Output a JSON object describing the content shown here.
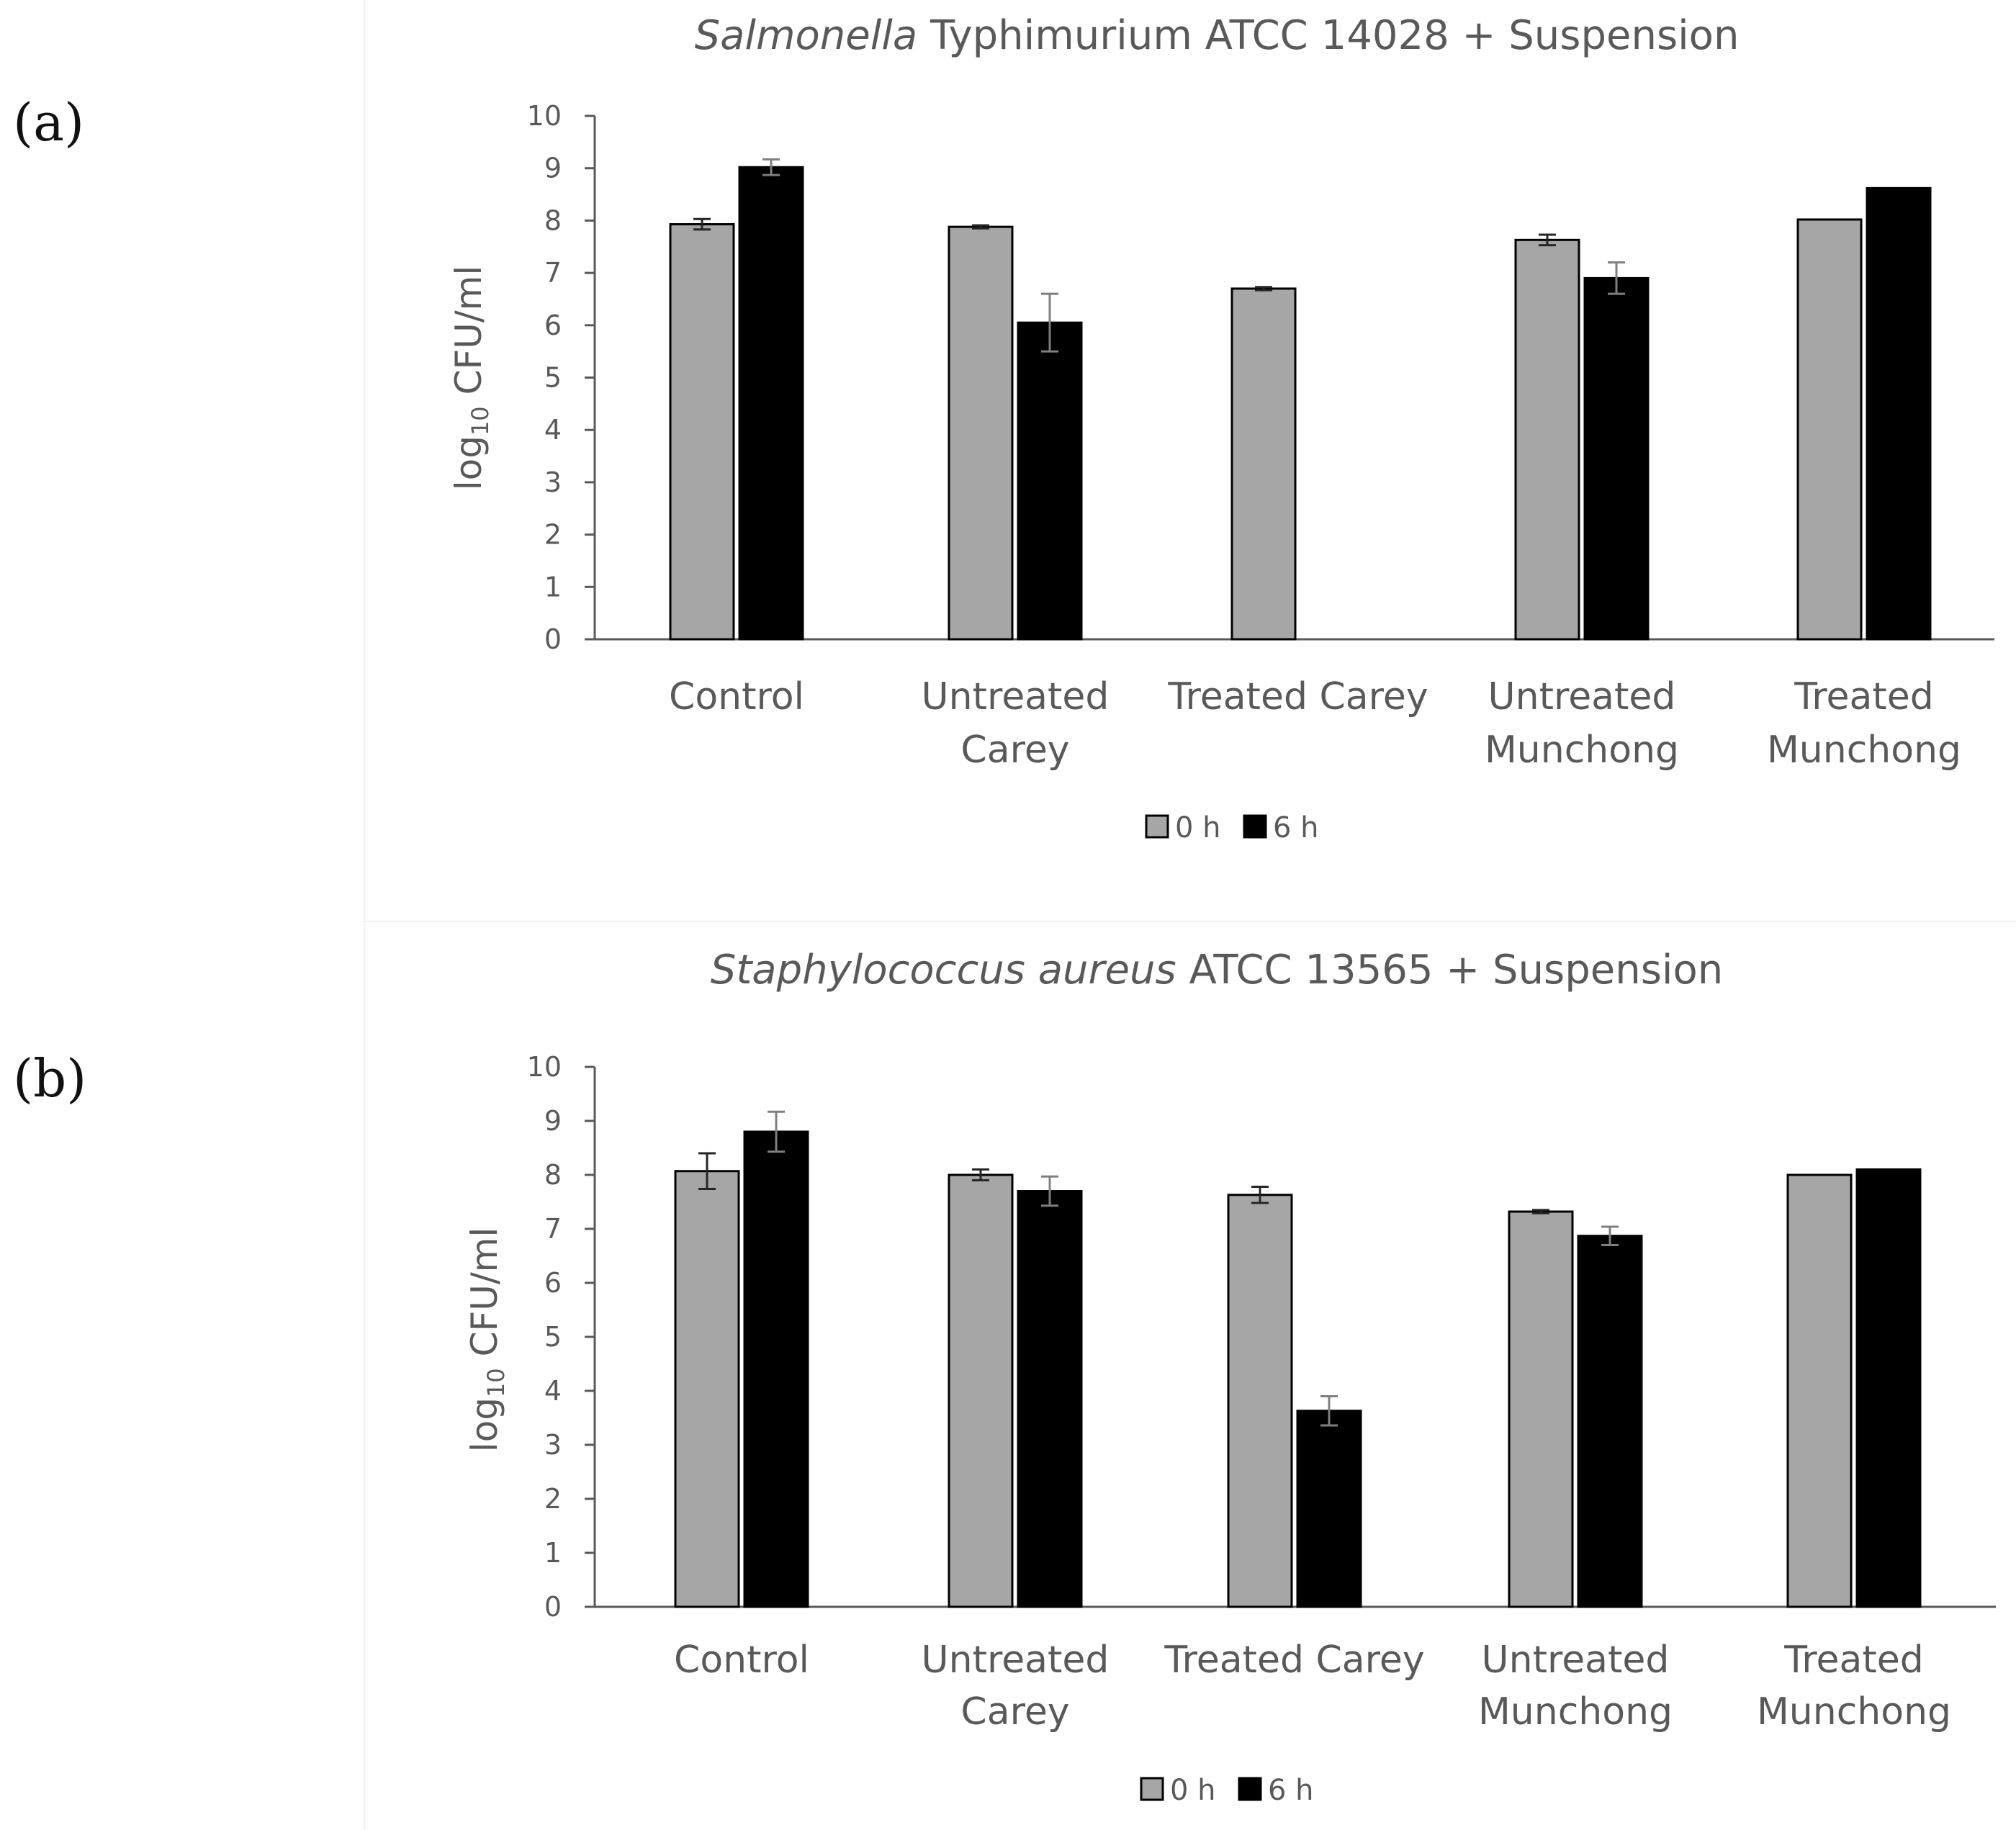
{
  "panels": [
    {
      "label": "(a)",
      "chart_data": {
        "type": "bar",
        "title_italic": "Salmonella",
        "title_rest": " Typhimurium ATCC 14028 + Suspension",
        "xlabel": "",
        "ylabel_main": "log",
        "ylabel_sub": "10",
        "ylabel_rest": " CFU/ml",
        "ylim": [
          0,
          10
        ],
        "yticks": [
          "0",
          "1",
          "2",
          "3",
          "4",
          "5",
          "6",
          "7",
          "8",
          "9",
          "10"
        ],
        "categories": [
          [
            "Control"
          ],
          [
            "Untreated",
            "Carey"
          ],
          [
            "Treated Carey"
          ],
          [
            "Untreated",
            "Munchong"
          ],
          [
            "Treated",
            "Munchong"
          ]
        ],
        "series": [
          {
            "name": "0 h",
            "color": "#a6a6a6",
            "values": [
              7.93,
              7.88,
              6.7,
              7.63,
              8.02
            ],
            "errors": [
              0.1,
              0.03,
              0.03,
              0.1,
              0.0
            ]
          },
          {
            "name": "6 h",
            "color": "#000000",
            "values": [
              9.02,
              6.05,
              null,
              6.9,
              8.62
            ],
            "errors": [
              0.15,
              0.55,
              null,
              0.3,
              0.0
            ]
          }
        ],
        "legend_position": "bottom"
      }
    },
    {
      "label": "(b)",
      "chart_data": {
        "type": "bar",
        "title_italic": "Staphylococcus aureus",
        "title_rest": " ATCC 13565 + Suspension",
        "xlabel": "",
        "ylabel_main": "log",
        "ylabel_sub": "10",
        "ylabel_rest": " CFU/ml",
        "ylim": [
          0,
          10
        ],
        "yticks": [
          "0",
          "1",
          "2",
          "3",
          "4",
          "5",
          "6",
          "7",
          "8",
          "9",
          "10"
        ],
        "categories": [
          [
            "Control"
          ],
          [
            "Untreated",
            "Carey"
          ],
          [
            "Treated Carey"
          ],
          [
            "Untreated",
            "Munchong"
          ],
          [
            "Treated",
            "Munchong"
          ]
        ],
        "series": [
          {
            "name": "0 h",
            "color": "#a6a6a6",
            "values": [
              8.07,
              8.0,
              7.63,
              7.32,
              8.0
            ],
            "errors": [
              0.33,
              0.1,
              0.15,
              0.03,
              0.0
            ]
          },
          {
            "name": "6 h",
            "color": "#000000",
            "values": [
              8.8,
              7.7,
              3.63,
              6.87,
              8.1
            ],
            "errors": [
              0.37,
              0.27,
              0.27,
              0.17,
              0.0
            ]
          }
        ],
        "legend_position": "bottom"
      }
    }
  ]
}
